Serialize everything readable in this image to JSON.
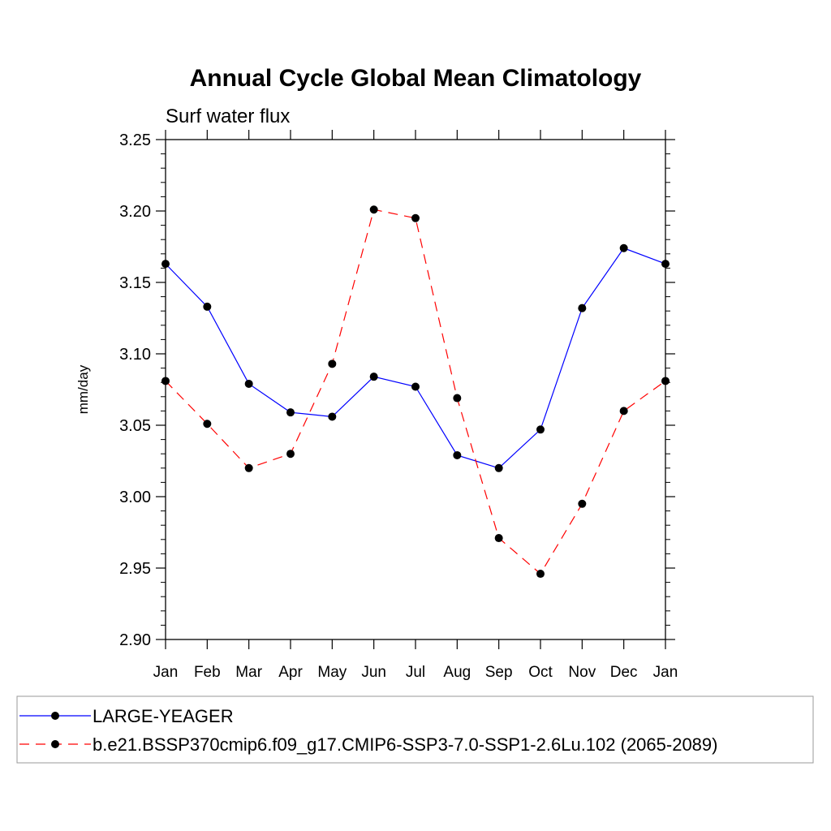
{
  "chart_data": {
    "type": "line",
    "title": "Annual Cycle Global Mean Climatology",
    "subtitle": "Surf water flux",
    "ylabel": "mm/day",
    "xlabel": "",
    "categories": [
      "Jan",
      "Feb",
      "Mar",
      "Apr",
      "May",
      "Jun",
      "Jul",
      "Aug",
      "Sep",
      "Oct",
      "Nov",
      "Dec",
      "Jan"
    ],
    "ylim": [
      2.9,
      3.25
    ],
    "yticks": [
      "2.90",
      "2.95",
      "3.00",
      "3.05",
      "3.10",
      "3.15",
      "3.20",
      "3.25"
    ],
    "grid": false,
    "legend_position": "bottom",
    "series": [
      {
        "name": "LARGE-YEAGER",
        "color": "#0000ff",
        "line_style": "solid",
        "marker": "filled-circle",
        "values": [
          3.163,
          3.133,
          3.079,
          3.059,
          3.056,
          3.084,
          3.077,
          3.029,
          3.02,
          3.047,
          3.132,
          3.174,
          3.163
        ]
      },
      {
        "name": "b.e21.BSSP370cmip6.f09_g17.CMIP6-SSP3-7.0-SSP1-2.6Lu.102 (2065-2089)",
        "color": "#ff0000",
        "line_style": "dashed",
        "marker": "filled-circle",
        "values": [
          3.081,
          3.051,
          3.02,
          3.03,
          3.093,
          3.201,
          3.195,
          3.069,
          2.971,
          2.946,
          2.995,
          3.06,
          3.081
        ]
      }
    ]
  }
}
